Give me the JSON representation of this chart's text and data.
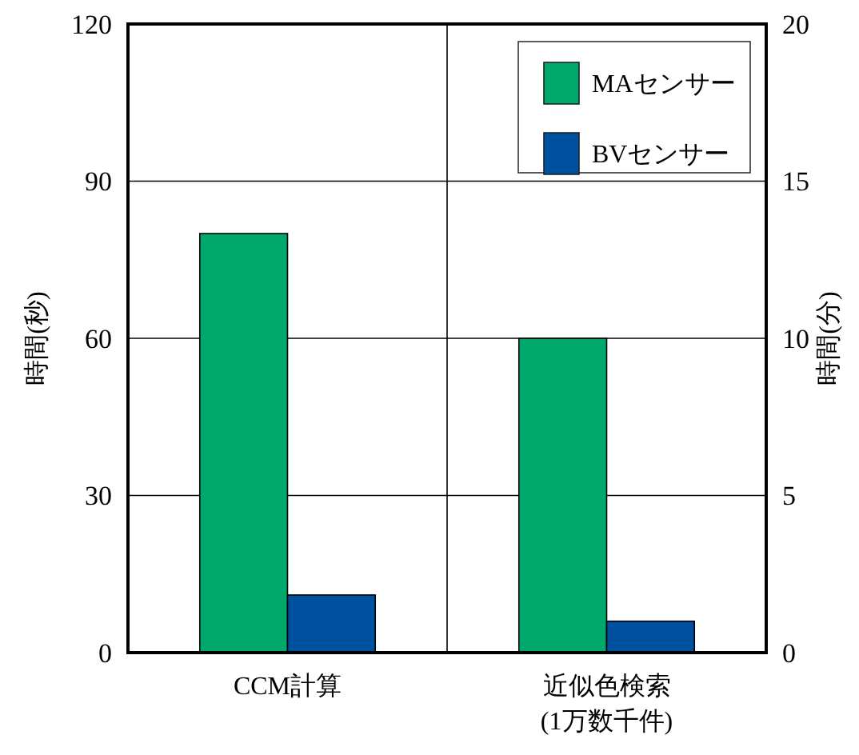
{
  "chart_data": {
    "type": "bar",
    "categories": [
      "CCM計算",
      "近似色検索\n(1万数千件)"
    ],
    "series": [
      {
        "name": "MAセンサー",
        "color": "#00a86b",
        "values": [
          80,
          60
        ]
      },
      {
        "name": "BVセンサー",
        "color": "#0050a0",
        "values": [
          11,
          6
        ]
      }
    ],
    "ylabel": "時間(秒)",
    "y2label": "時間(分)",
    "ylim": [
      0,
      120
    ],
    "yticks": [
      0,
      30,
      60,
      90,
      120
    ],
    "y2lim": [
      0,
      20
    ],
    "y2ticks": [
      0,
      5,
      10,
      15,
      20
    ],
    "grid": "y",
    "legend": "top right"
  }
}
